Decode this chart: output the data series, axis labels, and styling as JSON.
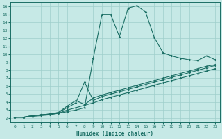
{
  "xlabel": "Humidex (Indice chaleur)",
  "xlim": [
    -0.5,
    23.5
  ],
  "ylim": [
    1.5,
    16.5
  ],
  "yticks": [
    2,
    3,
    4,
    5,
    6,
    7,
    8,
    9,
    10,
    11,
    12,
    13,
    14,
    15,
    16
  ],
  "xticks": [
    0,
    1,
    2,
    3,
    4,
    5,
    6,
    7,
    8,
    9,
    10,
    11,
    12,
    13,
    14,
    15,
    16,
    17,
    18,
    19,
    20,
    21,
    22,
    23
  ],
  "bg_color": "#c6e9e6",
  "grid_color": "#9ecfcb",
  "line_color": "#1a6e64",
  "line1_x": [
    0,
    1,
    2,
    3,
    4,
    5,
    6,
    7,
    8,
    9,
    10,
    11,
    12,
    13,
    14,
    15,
    16,
    17,
    18,
    19,
    20,
    21,
    22,
    23
  ],
  "line1_y": [
    2.1,
    2.1,
    2.3,
    2.4,
    2.5,
    2.6,
    2.8,
    3.0,
    3.3,
    9.5,
    15.0,
    15.0,
    12.2,
    15.8,
    16.1,
    15.3,
    12.1,
    10.2,
    9.8,
    9.5,
    9.3,
    9.2,
    9.8,
    9.3
  ],
  "line2_x": [
    0,
    1,
    2,
    3,
    4,
    5,
    6,
    7,
    8,
    9,
    10,
    11,
    12,
    13,
    14,
    15,
    16,
    17,
    18,
    19,
    20,
    21,
    22,
    23
  ],
  "line2_y": [
    2.1,
    2.1,
    2.3,
    2.4,
    2.5,
    2.7,
    3.5,
    4.2,
    3.7,
    4.5,
    4.9,
    5.2,
    5.5,
    5.8,
    6.1,
    6.4,
    6.7,
    7.0,
    7.3,
    7.6,
    7.9,
    8.2,
    8.5,
    8.7
  ],
  "line3_x": [
    0,
    1,
    2,
    3,
    4,
    5,
    6,
    7,
    8,
    9,
    10,
    11,
    12,
    13,
    14,
    15,
    16,
    17,
    18,
    19,
    20,
    21,
    22,
    23
  ],
  "line3_y": [
    2.1,
    2.1,
    2.3,
    2.4,
    2.5,
    2.7,
    3.3,
    3.9,
    6.5,
    4.2,
    4.7,
    5.0,
    5.3,
    5.6,
    5.9,
    6.2,
    6.5,
    6.8,
    7.1,
    7.4,
    7.7,
    8.0,
    8.3,
    8.6
  ],
  "line4_x": [
    0,
    1,
    2,
    3,
    4,
    5,
    6,
    7,
    8,
    9,
    10,
    11,
    12,
    13,
    14,
    15,
    16,
    17,
    18,
    19,
    20,
    21,
    22,
    23
  ],
  "line4_y": [
    2.1,
    2.1,
    2.2,
    2.3,
    2.4,
    2.6,
    3.0,
    3.3,
    3.6,
    3.9,
    4.3,
    4.6,
    4.9,
    5.2,
    5.5,
    5.8,
    6.1,
    6.4,
    6.7,
    7.0,
    7.3,
    7.6,
    7.9,
    8.2
  ]
}
